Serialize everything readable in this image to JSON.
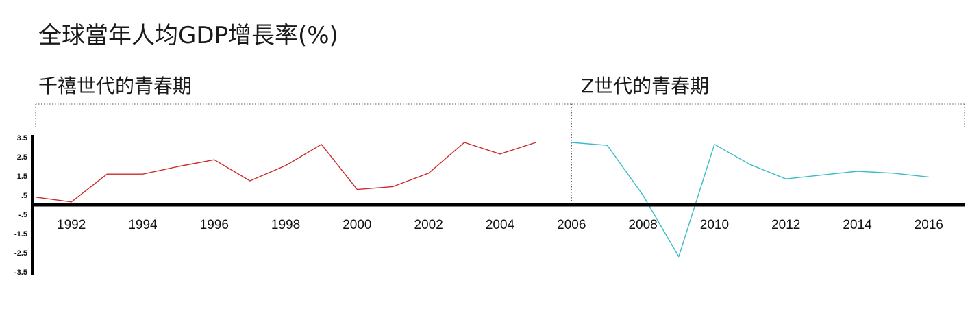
{
  "chart_data": {
    "type": "line",
    "title": "全球當年人均GDP增長率(%)",
    "xlabel": "",
    "ylabel": "",
    "ylim": [
      -3.5,
      3.5
    ],
    "xlim": [
      1991,
      2017
    ],
    "y_ticks": [
      "3.5",
      "2.5",
      "1.5",
      ".5",
      "-.5",
      "-1.5",
      "-2.5",
      "-3.5"
    ],
    "y_tick_values": [
      3.5,
      2.5,
      1.5,
      0.5,
      -0.5,
      -1.5,
      -2.5,
      -3.5
    ],
    "x_ticks": [
      "1992",
      "1994",
      "1996",
      "1998",
      "2000",
      "2002",
      "2004",
      "2006",
      "2008",
      "2010",
      "2012",
      "2014",
      "2016"
    ],
    "x_tick_values": [
      1992,
      1994,
      1996,
      1998,
      2000,
      2002,
      2004,
      2006,
      2008,
      2010,
      2012,
      2014,
      2016
    ],
    "sections": [
      {
        "label": "千禧世代的青春期",
        "from": 1991,
        "to": 2006
      },
      {
        "label": "Z世代的青春期",
        "from": 2006,
        "to": 2017
      }
    ],
    "series": [
      {
        "color": "#cc2b2b",
        "x": [
          1991,
          1992,
          1993,
          1994,
          1995,
          1996,
          1997,
          1998,
          1999,
          2000,
          2001,
          2002,
          2003,
          2004,
          2005,
          2006
        ],
        "values": [
          0.4,
          0.15,
          1.6,
          1.6,
          2.0,
          2.35,
          1.25,
          2.05,
          3.15,
          0.8,
          0.95,
          1.65,
          3.25,
          2.65,
          3.25,
          null
        ]
      },
      {
        "color": "#38bcc6",
        "x": [
          2006,
          2007,
          2008,
          2009,
          2010,
          2011,
          2012,
          2013,
          2014,
          2015,
          2016,
          2017
        ],
        "values": [
          3.25,
          3.1,
          0.5,
          -2.7,
          3.15,
          2.1,
          1.35,
          1.55,
          1.75,
          1.65,
          1.45,
          null
        ]
      }
    ],
    "grid": false,
    "legend": "none"
  }
}
